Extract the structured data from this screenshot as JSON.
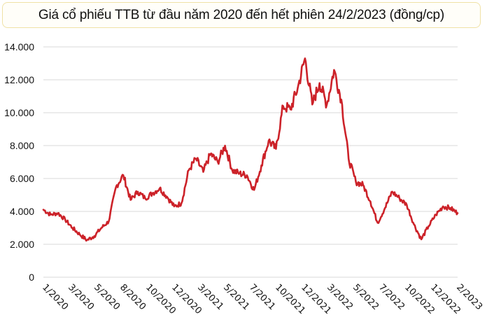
{
  "title": "Giá cổ phiếu TTB từ đầu năm 2020 đến hết phiên 24/2/2023 (đồng/cp)",
  "colors": {
    "line": "#cc2229",
    "grid": "#d9d9d9",
    "title_border": "#f0e2a6"
  },
  "chart_data": {
    "type": "line",
    "title": "Giá cổ phiếu TTB từ đầu năm 2020 đến hết phiên 24/2/2023 (đồng/cp)",
    "xlabel": "",
    "ylabel": "đồng/cp",
    "ylim": [
      0,
      14000
    ],
    "grid": true,
    "legend": "none",
    "y_ticks": [
      "0",
      "2.000",
      "4.000",
      "6.000",
      "8.000",
      "10.000",
      "12.000",
      "14.000"
    ],
    "x_ticks": [
      "1/2020",
      "3/2020",
      "5/2020",
      "8/2020",
      "10/2020",
      "12/2020",
      "3/2021",
      "5/2021",
      "7/2021",
      "10/2021",
      "12/2021",
      "3/2022",
      "5/2022",
      "7/2022",
      "10/2022",
      "12/2022",
      "2/2023"
    ],
    "series": [
      {
        "name": "TTB",
        "x": [
          "1/2020",
          "1/2020",
          "2/2020",
          "2/2020",
          "3/2020",
          "3/2020",
          "4/2020",
          "4/2020",
          "5/2020",
          "5/2020",
          "6/2020",
          "6/2020",
          "7/2020",
          "8/2020",
          "8/2020",
          "9/2020",
          "10/2020",
          "10/2020",
          "11/2020",
          "12/2020",
          "12/2020",
          "1/2021",
          "2/2021",
          "3/2021",
          "3/2021",
          "4/2021",
          "5/2021",
          "5/2021",
          "6/2021",
          "7/2021",
          "7/2021",
          "8/2021",
          "9/2021",
          "10/2021",
          "10/2021",
          "11/2021",
          "12/2021",
          "12/2021",
          "1/2022",
          "2/2022",
          "3/2022",
          "3/2022",
          "4/2022",
          "4/2022",
          "5/2022",
          "5/2022",
          "6/2022",
          "7/2022",
          "7/2022",
          "8/2022",
          "9/2022",
          "10/2022",
          "10/2022",
          "11/2022",
          "12/2022",
          "12/2022",
          "1/2023",
          "2/2023"
        ],
        "values": [
          4100,
          3800,
          3900,
          3500,
          3000,
          2600,
          2250,
          2500,
          3000,
          3400,
          5500,
          6200,
          4700,
          5200,
          4800,
          5100,
          5400,
          4900,
          4300,
          4500,
          6500,
          7200,
          6400,
          7500,
          7000,
          8000,
          6500,
          6300,
          6200,
          5300,
          6800,
          8300,
          7800,
          10400,
          10200,
          11500,
          13300,
          10500,
          11800,
          10500,
          12600,
          10800,
          7200,
          5800,
          5600,
          4600,
          3300,
          4200,
          5200,
          4800,
          4400,
          3200,
          2300,
          3100,
          3800,
          4300,
          4200,
          3900
        ]
      }
    ]
  }
}
